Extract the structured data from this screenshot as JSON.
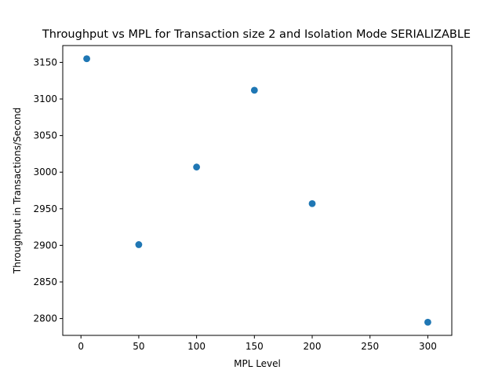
{
  "chart_data": {
    "type": "scatter",
    "title": "Throughput vs MPL for Transaction size 2 and Isolation Mode SERIALIZABLE",
    "xlabel": "MPL Level",
    "ylabel": "Throughput in Transactions/Second",
    "xlim": [
      -15.75,
      320.75
    ],
    "ylim": [
      2777,
      3173
    ],
    "xticks": [
      0,
      50,
      100,
      150,
      200,
      250,
      300
    ],
    "yticks": [
      2800,
      2850,
      2900,
      2950,
      3000,
      3050,
      3100,
      3150
    ],
    "grid": false,
    "legend": "none",
    "color": "#1f77b4",
    "points": [
      {
        "x": 5,
        "y": 3155
      },
      {
        "x": 50,
        "y": 2901
      },
      {
        "x": 100,
        "y": 3007
      },
      {
        "x": 150,
        "y": 3112
      },
      {
        "x": 200,
        "y": 2957
      },
      {
        "x": 300,
        "y": 2795
      }
    ]
  }
}
